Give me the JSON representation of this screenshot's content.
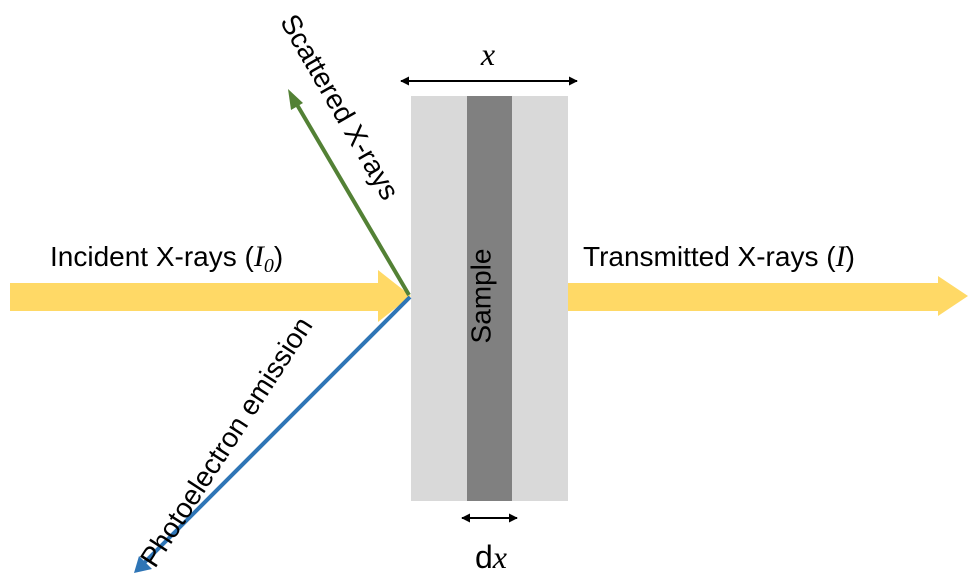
{
  "labels": {
    "scattered": "Scattered X-rays",
    "incident": "Incident X-rays (",
    "incident_symbol": "I",
    "incident_subscript": "0",
    "incident_close": ")",
    "transmitted": "Transmitted X-rays (",
    "transmitted_symbol": "I",
    "transmitted_close": ")",
    "sample": "Sample",
    "thickness": "x",
    "slice_prefix": "d",
    "slice_symbol": "x",
    "photoelectron": "Photoelectron emission"
  },
  "colors": {
    "xray_beam": "#FFD966",
    "scattered": "#538135",
    "photoelectron": "#2E75B6",
    "sample_outer": "#D9D9D9",
    "sample_slice": "#808080",
    "dimension": "#000000"
  }
}
